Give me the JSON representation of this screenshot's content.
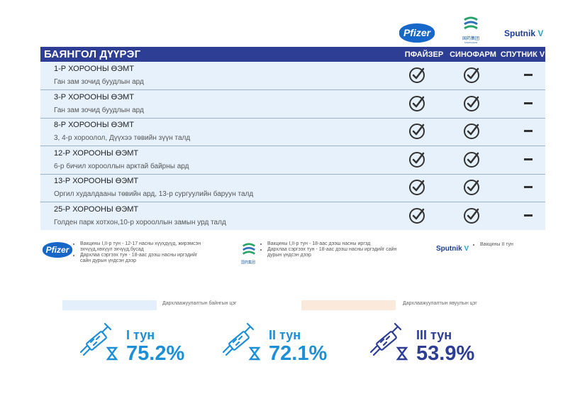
{
  "logos": {
    "pfizer": "Pfizer",
    "sinopharm": "国药集团",
    "sinopharm_sub": "SINOPHARM",
    "sputnik_main": "Sputnik",
    "sputnik_v": "V"
  },
  "table": {
    "district": "БАЯНГОЛ ДҮҮРЭГ",
    "columns": [
      "ПФАЙЗЕР",
      "СИНОФАРМ",
      "СПУТНИК V"
    ],
    "rows": [
      {
        "title": "1-Р ХОРООНЫ ӨЭМТ",
        "address": "Ган зам зочид буудлын ард",
        "pfizer": "check",
        "sinopharm": "check",
        "sputnik": "dash"
      },
      {
        "title": "3-Р ХОРООНЫ ӨЭМТ",
        "address": "Ган зам зочид буудлын ард",
        "pfizer": "check",
        "sinopharm": "check",
        "sputnik": "dash"
      },
      {
        "title": "8-Р ХОРООНЫ ӨЭМТ",
        "address": "3, 4-р хороолол, Дүүхээ төвийн зүүн талд",
        "pfizer": "check",
        "sinopharm": "check",
        "sputnik": "dash"
      },
      {
        "title": "12-Р ХОРООНЫ ӨЭМТ",
        "address": "6-р бичил хорооллын арктай байрны ард",
        "pfizer": "check",
        "sinopharm": "check",
        "sputnik": "dash"
      },
      {
        "title": "13-Р ХОРООНЫ ӨЭМТ",
        "address": "Оргил худалдааны төвийн ард, 13-р сургуулийн баруун талд",
        "pfizer": "check",
        "sinopharm": "check",
        "sputnik": "dash"
      },
      {
        "title": "25-Р ХОРООНЫ ӨЭМТ",
        "address": "Голден парк хотхон,10-р хорооллын замын урд талд",
        "pfizer": "check",
        "sinopharm": "check",
        "sputnik": "dash"
      }
    ]
  },
  "legend": {
    "pfizer": [
      "Вакцины I,II-р тун - 12-17 насны хүүхдүүд, жирэмсэн эхчүүд,хөхүүл эхчүүд,бусад",
      "Дархлаа сэргээх тун - 18-аас дээш насны иргэдийг сайн дурын үндсэн дээр"
    ],
    "sinopharm": [
      "Вакцины I,II-р тун - 18-аас дээш насны иргэд",
      "Дархлаа сэргээх тун - 18-аас дээш насны иргэдийг сайн дурын үндсэн дээр"
    ],
    "sputnik": [
      "Вакцины II тун"
    ]
  },
  "key": {
    "available": "Дархлаажуулалтын байнгын цэг",
    "mobile": "Дархлаажуулалтын явуулын цэг",
    "available_color": "#e3f0fb",
    "mobile_color": "#fbe9dc"
  },
  "stats": [
    {
      "dose": "I тун",
      "value": "75.2%"
    },
    {
      "dose": "II тун",
      "value": "72.1%"
    },
    {
      "dose": "III тун",
      "value": "53.9%"
    }
  ]
}
